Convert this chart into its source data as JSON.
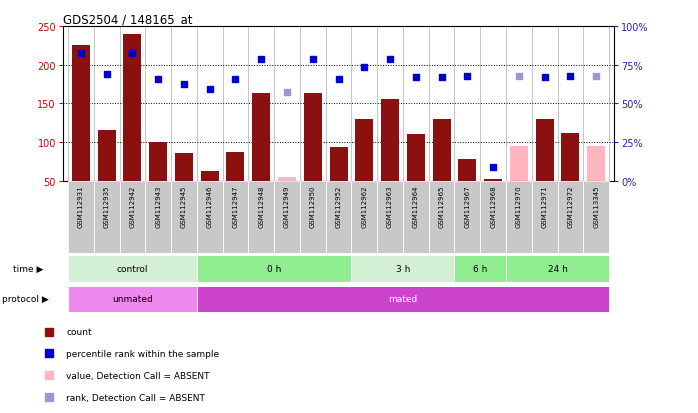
{
  "title": "GDS2504 / 148165_at",
  "samples": [
    "GSM112931",
    "GSM112935",
    "GSM112942",
    "GSM112943",
    "GSM112945",
    "GSM112946",
    "GSM112947",
    "GSM112948",
    "GSM112949",
    "GSM112950",
    "GSM112952",
    "GSM112962",
    "GSM112963",
    "GSM112964",
    "GSM112965",
    "GSM112967",
    "GSM112968",
    "GSM112970",
    "GSM112971",
    "GSM112972",
    "GSM113345"
  ],
  "bar_values": [
    225,
    115,
    240,
    100,
    86,
    62,
    87,
    163,
    55,
    163,
    94,
    130,
    155,
    110,
    130,
    78,
    52,
    95,
    130,
    112,
    95
  ],
  "bar_absent": [
    false,
    false,
    false,
    false,
    false,
    false,
    false,
    false,
    true,
    false,
    false,
    false,
    false,
    false,
    false,
    false,
    false,
    true,
    false,
    false,
    true
  ],
  "dot_values": [
    215,
    188,
    215,
    181,
    175,
    168,
    181,
    207,
    165,
    207,
    181,
    197,
    207,
    184,
    184,
    185,
    68,
    185,
    184,
    185,
    185
  ],
  "dot_absent": [
    false,
    false,
    false,
    false,
    false,
    false,
    false,
    false,
    true,
    false,
    false,
    false,
    false,
    false,
    false,
    false,
    false,
    true,
    false,
    false,
    true
  ],
  "time_groups": [
    {
      "label": "control",
      "start": 0,
      "end": 5,
      "color": "#d4f0d4"
    },
    {
      "label": "0 h",
      "start": 5,
      "end": 11,
      "color": "#90ee90"
    },
    {
      "label": "3 h",
      "start": 11,
      "end": 15,
      "color": "#d4f0d4"
    },
    {
      "label": "6 h",
      "start": 15,
      "end": 17,
      "color": "#90ee90"
    },
    {
      "label": "24 h",
      "start": 17,
      "end": 21,
      "color": "#90ee90"
    }
  ],
  "protocol_groups": [
    {
      "label": "unmated",
      "start": 0,
      "end": 5,
      "color": "#ee88ee"
    },
    {
      "label": "mated",
      "start": 5,
      "end": 21,
      "color": "#cc44cc"
    }
  ],
  "ylim_left": [
    50,
    250
  ],
  "ylim_right": [
    0,
    100
  ],
  "yticks_left": [
    50,
    100,
    150,
    200,
    250
  ],
  "yticks_right": [
    0,
    25,
    50,
    75,
    100
  ],
  "bar_color": "#8B1010",
  "bar_absent_color": "#FFB6C1",
  "dot_color": "#0000CC",
  "dot_absent_color": "#9999CC",
  "bg_color": "#ffffff",
  "tick_color_left": "#CC0000",
  "tick_color_right": "#2222BB",
  "sample_box_color": "#c8c8c8",
  "grid_color": "black"
}
